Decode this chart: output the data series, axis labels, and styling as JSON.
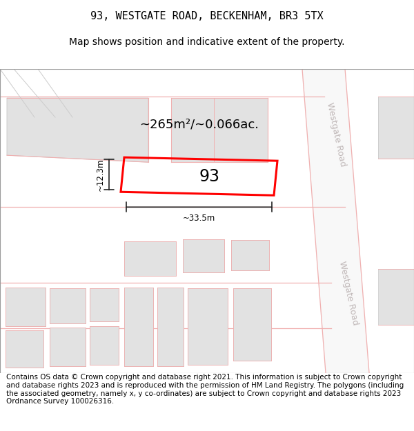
{
  "title": "93, WESTGATE ROAD, BECKENHAM, BR3 5TX",
  "subtitle": "Map shows position and indicative extent of the property.",
  "area_text": "~265m²/~0.066ac.",
  "width_label": "~33.5m",
  "height_label": "~12.3m",
  "house_number": "93",
  "footer_text": "Contains OS data © Crown copyright and database right 2021. This information is subject to Crown copyright and database rights 2023 and is reproduced with the permission of HM Land Registry. The polygons (including the associated geometry, namely x, y co-ordinates) are subject to Crown copyright and database rights 2023 Ordnance Survey 100026316.",
  "bg_color": "#ffffff",
  "road_color": "#f0b0b0",
  "building_fill": "#e2e2e2",
  "building_edge": "#c8c8c8",
  "plot_color": "#ff0000",
  "road_label_color": "#c0b8b8",
  "dim_color": "#222222",
  "title_fontsize": 11,
  "subtitle_fontsize": 10,
  "footer_fontsize": 7.5
}
